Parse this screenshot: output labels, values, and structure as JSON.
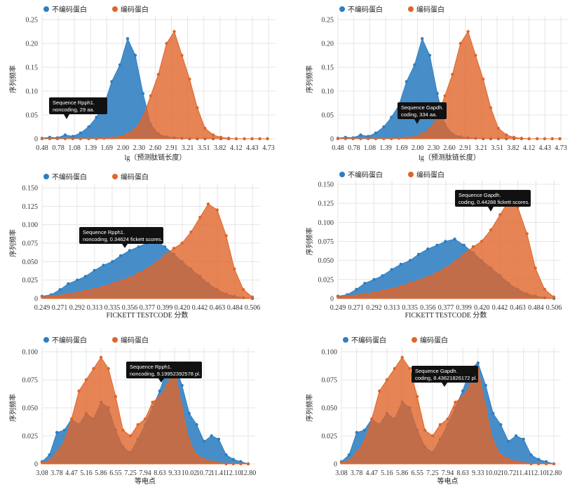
{
  "colors": {
    "noncoding": "#2e7ec2",
    "coding": "#e0652a",
    "grid": "#e4e4e4",
    "tooltip": "#111111"
  },
  "chart_data": [
    {
      "type": "area",
      "legend": [
        "不编码蛋白",
        "编码蛋白"
      ],
      "ylabel": "序列频率",
      "xlabel": "lg（预测肽链长度）",
      "xticks": [
        "0.48",
        "0.78",
        "1.08",
        "1.39",
        "1.69",
        "2.00",
        "2.30",
        "2.60",
        "2.91",
        "3.21",
        "3.51",
        "3.82",
        "4.12",
        "4.43",
        "4.73"
      ],
      "yticks": [
        "0",
        "0.05",
        "0.10",
        "0.15",
        "0.20",
        "0.25"
      ],
      "xlim": [
        0.48,
        4.9
      ],
      "ylim": [
        0,
        0.25
      ],
      "series": [
        {
          "x": [
            0.48,
            0.63,
            0.78,
            0.93,
            1.08,
            1.23,
            1.39,
            1.54,
            1.69,
            1.84,
            2.0,
            2.15,
            2.3,
            2.45,
            2.6,
            2.75,
            2.91,
            3.06,
            3.21,
            3.36,
            3.51,
            3.66,
            3.82,
            3.97,
            4.12,
            4.27,
            4.43,
            4.58,
            4.73,
            4.88
          ],
          "y": [
            0.001,
            0.003,
            0.002,
            0.008,
            0.005,
            0.012,
            0.025,
            0.045,
            0.07,
            0.12,
            0.155,
            0.21,
            0.175,
            0.095,
            0.03,
            0.01,
            0.004,
            0.002,
            0.001,
            0,
            0,
            0,
            0,
            0,
            0,
            0,
            0,
            0,
            0,
            0
          ]
        },
        {
          "x": [
            0.48,
            0.63,
            0.78,
            0.93,
            1.08,
            1.23,
            1.39,
            1.54,
            1.69,
            1.84,
            2.0,
            2.15,
            2.3,
            2.45,
            2.6,
            2.75,
            2.91,
            3.06,
            3.21,
            3.36,
            3.51,
            3.66,
            3.82,
            3.97,
            4.12,
            4.27,
            4.43,
            4.58,
            4.73,
            4.88
          ],
          "y": [
            0,
            0,
            0,
            0,
            0,
            0,
            0,
            0,
            0.001,
            0.002,
            0.004,
            0.01,
            0.02,
            0.045,
            0.09,
            0.135,
            0.2,
            0.225,
            0.175,
            0.125,
            0.065,
            0.022,
            0.008,
            0.003,
            0.001,
            0,
            0,
            0,
            0,
            0
          ]
        }
      ],
      "tooltip": [
        "Sequence Rpph1.",
        "noncoding, 29 aa."
      ]
    },
    {
      "type": "area",
      "legend": [
        "不编码蛋白",
        "编码蛋白"
      ],
      "ylabel": "序列频率",
      "xlabel": "lg（预测肽链长度）",
      "xticks": [
        "0.48",
        "0.78",
        "1.08",
        "1.39",
        "1.69",
        "2.00",
        "2.30",
        "2.60",
        "2.91",
        "3.21",
        "3.51",
        "3.82",
        "4.12",
        "4.43",
        "4.73"
      ],
      "yticks": [
        "0",
        "0.05",
        "0.10",
        "0.15",
        "0.20",
        "0.25"
      ],
      "xlim": [
        0.48,
        4.9
      ],
      "ylim": [
        0,
        0.25
      ],
      "series": [
        {
          "x": [
            0.48,
            0.63,
            0.78,
            0.93,
            1.08,
            1.23,
            1.39,
            1.54,
            1.69,
            1.84,
            2.0,
            2.15,
            2.3,
            2.45,
            2.6,
            2.75,
            2.91,
            3.06,
            3.21,
            3.36,
            3.51,
            3.66,
            3.82,
            3.97,
            4.12,
            4.27,
            4.43,
            4.58,
            4.73,
            4.88
          ],
          "y": [
            0.001,
            0.003,
            0.002,
            0.008,
            0.005,
            0.012,
            0.025,
            0.045,
            0.07,
            0.12,
            0.155,
            0.21,
            0.175,
            0.095,
            0.03,
            0.01,
            0.004,
            0.002,
            0.001,
            0,
            0,
            0,
            0,
            0,
            0,
            0,
            0,
            0,
            0,
            0
          ]
        },
        {
          "x": [
            0.48,
            0.63,
            0.78,
            0.93,
            1.08,
            1.23,
            1.39,
            1.54,
            1.69,
            1.84,
            2.0,
            2.15,
            2.3,
            2.45,
            2.6,
            2.75,
            2.91,
            3.06,
            3.21,
            3.36,
            3.51,
            3.66,
            3.82,
            3.97,
            4.12,
            4.27,
            4.43,
            4.58,
            4.73,
            4.88
          ],
          "y": [
            0,
            0,
            0,
            0,
            0,
            0,
            0,
            0,
            0.001,
            0.002,
            0.004,
            0.01,
            0.02,
            0.045,
            0.09,
            0.135,
            0.2,
            0.225,
            0.175,
            0.125,
            0.065,
            0.022,
            0.008,
            0.003,
            0.001,
            0,
            0,
            0,
            0,
            0
          ]
        }
      ],
      "tooltip": [
        "Sequence Gapdh.",
        "coding, 334 aa."
      ]
    },
    {
      "type": "area",
      "legend": [
        "不编码蛋白",
        "编码蛋白"
      ],
      "ylabel": "序列频率",
      "xlabel": "FICKETT TESTCODE 分数",
      "xticks": [
        "0.249",
        "0.271",
        "0.292",
        "0.313",
        "0.335",
        "0.356",
        "0.377",
        "0.399",
        "0.420",
        "0.442",
        "0.463",
        "0.484",
        "0.506"
      ],
      "yticks": [
        "0",
        "0.025",
        "0.050",
        "0.075",
        "0.100",
        "0.125",
        "0.150"
      ],
      "xlim": [
        0.249,
        0.506
      ],
      "ylim": [
        0,
        0.15
      ],
      "series": [
        {
          "x": [
            0.249,
            0.26,
            0.271,
            0.281,
            0.292,
            0.302,
            0.313,
            0.324,
            0.335,
            0.345,
            0.356,
            0.367,
            0.377,
            0.388,
            0.399,
            0.41,
            0.42,
            0.431,
            0.442,
            0.452,
            0.463,
            0.474,
            0.484,
            0.495,
            0.506
          ],
          "y": [
            0.003,
            0.005,
            0.012,
            0.02,
            0.025,
            0.03,
            0.038,
            0.045,
            0.05,
            0.058,
            0.065,
            0.07,
            0.075,
            0.078,
            0.07,
            0.06,
            0.05,
            0.04,
            0.03,
            0.02,
            0.012,
            0.006,
            0.003,
            0.001,
            0
          ],
          "points_per_segment": 1
        },
        {
          "x": [
            0.249,
            0.26,
            0.271,
            0.281,
            0.292,
            0.302,
            0.313,
            0.324,
            0.335,
            0.345,
            0.356,
            0.367,
            0.377,
            0.388,
            0.399,
            0.41,
            0.42,
            0.431,
            0.442,
            0.452,
            0.463,
            0.474,
            0.484,
            0.495,
            0.506
          ],
          "y": [
            0.002,
            0.003,
            0.004,
            0.006,
            0.008,
            0.01,
            0.013,
            0.016,
            0.02,
            0.024,
            0.028,
            0.034,
            0.04,
            0.048,
            0.058,
            0.068,
            0.075,
            0.09,
            0.11,
            0.128,
            0.12,
            0.085,
            0.04,
            0.012,
            0.002
          ]
        }
      ],
      "tooltip": [
        "Sequence Rpph1.",
        "noncoding, 0.34624 fickett scores."
      ]
    },
    {
      "type": "area",
      "legend": [
        "不编码蛋白",
        "编码蛋白"
      ],
      "ylabel": "序列频率",
      "xlabel": "FICKETT TESTCODE 分数",
      "xticks": [
        "0.249",
        "0.271",
        "0.292",
        "0.313",
        "0.335",
        "0.356",
        "0.377",
        "0.399",
        "0.420",
        "0.442",
        "0.463",
        "0.484",
        "0.506"
      ],
      "yticks": [
        "0",
        "0.025",
        "0.050",
        "0.075",
        "0.100",
        "0.125",
        "0.150"
      ],
      "xlim": [
        0.249,
        0.506
      ],
      "ylim": [
        0,
        0.15
      ],
      "series": [
        {
          "x": [
            0.249,
            0.26,
            0.271,
            0.281,
            0.292,
            0.302,
            0.313,
            0.324,
            0.335,
            0.345,
            0.356,
            0.367,
            0.377,
            0.388,
            0.399,
            0.41,
            0.42,
            0.431,
            0.442,
            0.452,
            0.463,
            0.474,
            0.484,
            0.495,
            0.506
          ],
          "y": [
            0.003,
            0.005,
            0.012,
            0.02,
            0.025,
            0.03,
            0.038,
            0.045,
            0.05,
            0.058,
            0.065,
            0.07,
            0.075,
            0.078,
            0.07,
            0.06,
            0.05,
            0.04,
            0.03,
            0.02,
            0.012,
            0.006,
            0.003,
            0.001,
            0
          ]
        },
        {
          "x": [
            0.249,
            0.26,
            0.271,
            0.281,
            0.292,
            0.302,
            0.313,
            0.324,
            0.335,
            0.345,
            0.356,
            0.367,
            0.377,
            0.388,
            0.399,
            0.41,
            0.42,
            0.431,
            0.442,
            0.452,
            0.463,
            0.474,
            0.484,
            0.495,
            0.506
          ],
          "y": [
            0.002,
            0.003,
            0.004,
            0.006,
            0.008,
            0.01,
            0.013,
            0.016,
            0.02,
            0.024,
            0.028,
            0.034,
            0.04,
            0.048,
            0.058,
            0.068,
            0.075,
            0.09,
            0.11,
            0.128,
            0.12,
            0.085,
            0.04,
            0.012,
            0.002
          ]
        }
      ],
      "tooltip": [
        "Sequence Gapdh.",
        "coding, 0.44288 fickett scores."
      ]
    },
    {
      "type": "area",
      "legend": [
        "不编码蛋白",
        "编码蛋白"
      ],
      "ylabel": "序列频率",
      "xlabel": "等电点",
      "xticks": [
        "3.08",
        "3.78",
        "4.47",
        "5.16",
        "5.86",
        "6.55",
        "7.25",
        "7.94",
        "8.63",
        "9.33",
        "10.02",
        "10.72",
        "11.41",
        "12.10",
        "12.80"
      ],
      "yticks": [
        "0",
        "0.025",
        "0.050",
        "0.075",
        "0.100"
      ],
      "xlim": [
        3.08,
        12.8
      ],
      "ylim": [
        0,
        0.1
      ],
      "series": [
        {
          "x": [
            3.08,
            3.43,
            3.78,
            4.13,
            4.47,
            4.82,
            5.16,
            5.51,
            5.86,
            6.21,
            6.55,
            6.9,
            7.25,
            7.6,
            7.94,
            8.29,
            8.63,
            8.98,
            9.33,
            9.68,
            10.02,
            10.37,
            10.72,
            11.07,
            11.41,
            11.76,
            12.1,
            12.45,
            12.8
          ],
          "y": [
            0.002,
            0.008,
            0.028,
            0.03,
            0.04,
            0.035,
            0.045,
            0.04,
            0.055,
            0.05,
            0.03,
            0.015,
            0.01,
            0.022,
            0.035,
            0.05,
            0.065,
            0.085,
            0.09,
            0.07,
            0.045,
            0.035,
            0.02,
            0.025,
            0.022,
            0.008,
            0.004,
            0.002,
            0
          ]
        },
        {
          "x": [
            3.08,
            3.43,
            3.78,
            4.13,
            4.47,
            4.82,
            5.16,
            5.51,
            5.86,
            6.21,
            6.55,
            6.9,
            7.25,
            7.6,
            7.94,
            8.29,
            8.63,
            8.98,
            9.33,
            9.68,
            10.02,
            10.37,
            10.72,
            11.07,
            11.41,
            11.76,
            12.1,
            12.45,
            12.8
          ],
          "y": [
            0.001,
            0.003,
            0.01,
            0.02,
            0.04,
            0.065,
            0.075,
            0.085,
            0.095,
            0.085,
            0.06,
            0.03,
            0.025,
            0.035,
            0.04,
            0.055,
            0.06,
            0.07,
            0.085,
            0.05,
            0.02,
            0.008,
            0.004,
            0.002,
            0.001,
            0,
            0,
            0,
            0
          ]
        }
      ],
      "tooltip": [
        "Sequence Rpph1.",
        "noncoding, 9.19952392578 pl."
      ]
    },
    {
      "type": "area",
      "legend": [
        "不编码蛋白",
        "编码蛋白"
      ],
      "ylabel": "序列频率",
      "xlabel": "等电点",
      "xticks": [
        "3.08",
        "3.78",
        "4.47",
        "5.16",
        "5.86",
        "6.55",
        "7.25",
        "7.94",
        "8.63",
        "9.33",
        "10.02",
        "10.72",
        "11.41",
        "12.10",
        "12.80"
      ],
      "yticks": [
        "0",
        "0.025",
        "0.050",
        "0.075",
        "0.100"
      ],
      "xlim": [
        3.08,
        12.8
      ],
      "ylim": [
        0,
        0.1
      ],
      "series": [
        {
          "x": [
            3.08,
            3.43,
            3.78,
            4.13,
            4.47,
            4.82,
            5.16,
            5.51,
            5.86,
            6.21,
            6.55,
            6.9,
            7.25,
            7.6,
            7.94,
            8.29,
            8.63,
            8.98,
            9.33,
            9.68,
            10.02,
            10.37,
            10.72,
            11.07,
            11.41,
            11.76,
            12.1,
            12.45,
            12.8
          ],
          "y": [
            0.002,
            0.008,
            0.028,
            0.03,
            0.04,
            0.035,
            0.045,
            0.04,
            0.055,
            0.05,
            0.03,
            0.015,
            0.01,
            0.022,
            0.035,
            0.05,
            0.065,
            0.085,
            0.09,
            0.07,
            0.045,
            0.035,
            0.02,
            0.025,
            0.022,
            0.008,
            0.004,
            0.002,
            0
          ]
        },
        {
          "x": [
            3.08,
            3.43,
            3.78,
            4.13,
            4.47,
            4.82,
            5.16,
            5.51,
            5.86,
            6.21,
            6.55,
            6.9,
            7.25,
            7.6,
            7.94,
            8.29,
            8.63,
            8.98,
            9.33,
            9.68,
            10.02,
            10.37,
            10.72,
            11.07,
            11.41,
            11.76,
            12.1,
            12.45,
            12.8
          ],
          "y": [
            0.001,
            0.003,
            0.01,
            0.02,
            0.04,
            0.065,
            0.075,
            0.085,
            0.095,
            0.085,
            0.06,
            0.03,
            0.025,
            0.035,
            0.04,
            0.055,
            0.06,
            0.07,
            0.085,
            0.05,
            0.02,
            0.008,
            0.004,
            0.002,
            0.001,
            0,
            0,
            0,
            0
          ]
        }
      ],
      "tooltip": [
        "Sequence Gapdh.",
        "coding, 8.43621826172 pl."
      ]
    }
  ]
}
